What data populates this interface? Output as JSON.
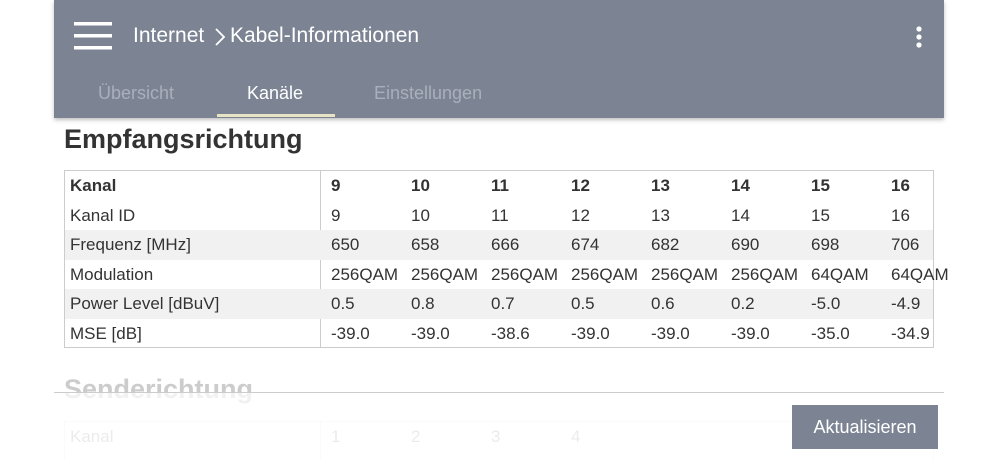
{
  "header": {
    "breadcrumb": [
      "Internet",
      "Kabel-Informationen"
    ]
  },
  "tabs": {
    "items": [
      "Übersicht",
      "Kanäle",
      "Einstellungen"
    ],
    "active": 1
  },
  "downstream": {
    "title": "Empfangsrichtung",
    "table": {
      "header": [
        "Kanal",
        "9",
        "10",
        "11",
        "12",
        "13",
        "14",
        "15",
        "16"
      ],
      "rows": [
        [
          "Kanal ID",
          "9",
          "10",
          "11",
          "12",
          "13",
          "14",
          "15",
          "16"
        ],
        [
          "Frequenz [MHz]",
          "650",
          "658",
          "666",
          "674",
          "682",
          "690",
          "698",
          "706"
        ],
        [
          "Modulation",
          "256QAM",
          "256QAM",
          "256QAM",
          "256QAM",
          "256QAM",
          "256QAM",
          "64QAM",
          "64QAM"
        ],
        [
          "Power Level [dBuV]",
          "0.5",
          "0.8",
          "0.7",
          "0.5",
          "0.6",
          "0.2",
          "-5.0",
          "-4.9"
        ],
        [
          "MSE [dB]",
          "-39.0",
          "-39.0",
          "-38.6",
          "-39.0",
          "-39.0",
          "-39.0",
          "-35.0",
          "-34.9"
        ]
      ]
    }
  },
  "upstream": {
    "title": "Senderichtung",
    "table": {
      "header": [
        "Kanal",
        "1",
        "2",
        "3",
        "4"
      ]
    }
  },
  "button": {
    "label": "Aktualisieren"
  }
}
